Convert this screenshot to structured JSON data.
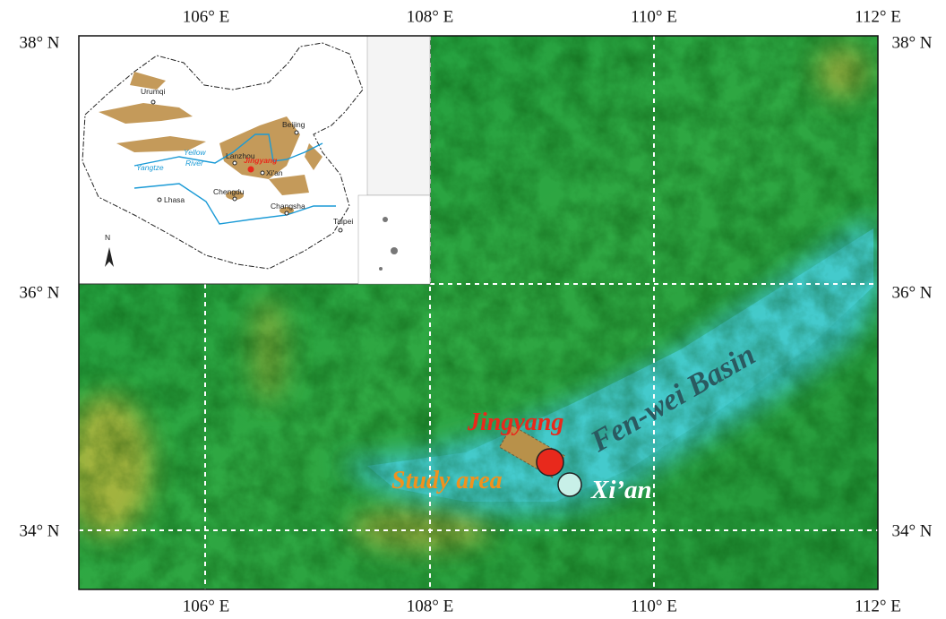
{
  "map": {
    "lon_labels": [
      "106° E",
      "108° E",
      "110° E",
      "112° E"
    ],
    "lat_labels": [
      "38° N",
      "36° N",
      "34° N"
    ],
    "inset": {
      "cities": [
        "Urumqi",
        "Beijing",
        "Lanzhou",
        "Xi'an",
        "Chengdu",
        "Lhasa",
        "Changsha",
        "Taipei"
      ],
      "highlight": "Jingyang",
      "rivers": [
        "Yellow",
        "River",
        "Yangtze"
      ],
      "north": "N"
    },
    "labels": {
      "basin": "Fen-wei Basin",
      "site": "Jingyang",
      "study": "Study area",
      "city": "Xi’an"
    }
  }
}
